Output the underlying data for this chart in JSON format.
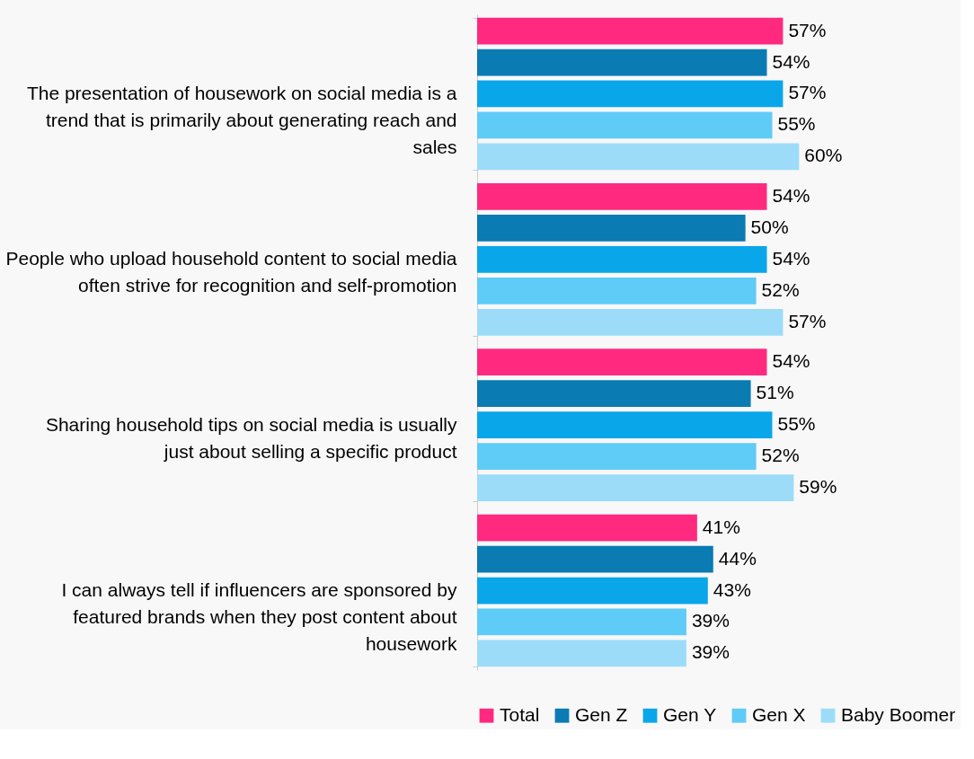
{
  "chart_data": {
    "type": "bar",
    "orientation": "horizontal",
    "categories": [
      "The presentation of housework on social media is a trend that is primarily about generating reach and sales",
      "People who upload household content to social media often strive for recognition and self-promotion",
      "Sharing household tips on social media is usually just about selling a specific product",
      "I can always tell if influencers are sponsored by featured brands when they post content about housework"
    ],
    "series": [
      {
        "name": "Total",
        "color": "#ff2a7f",
        "values": [
          57,
          54,
          54,
          41
        ],
        "value_labels": [
          "57%",
          "54%",
          "54%",
          "41%"
        ]
      },
      {
        "name": "Gen Z",
        "color": "#0a7bb3",
        "values": [
          54,
          50,
          51,
          44
        ],
        "value_labels": [
          "54%",
          "50%",
          "51%",
          "44%"
        ]
      },
      {
        "name": "Gen Y",
        "color": "#0aa6ea",
        "values": [
          57,
          54,
          55,
          43
        ],
        "value_labels": [
          "57%",
          "54%",
          "55%",
          "43%"
        ]
      },
      {
        "name": "Gen X",
        "color": "#5fcbf7",
        "values": [
          55,
          52,
          52,
          39
        ],
        "value_labels": [
          "55%",
          "52%",
          "52%",
          "39%"
        ]
      },
      {
        "name": "Baby Boomer",
        "color": "#9cdcf9",
        "values": [
          60,
          57,
          59,
          39
        ],
        "value_labels": [
          "60%",
          "57%",
          "59%",
          "39%"
        ]
      }
    ],
    "legend": "bottom"
  }
}
